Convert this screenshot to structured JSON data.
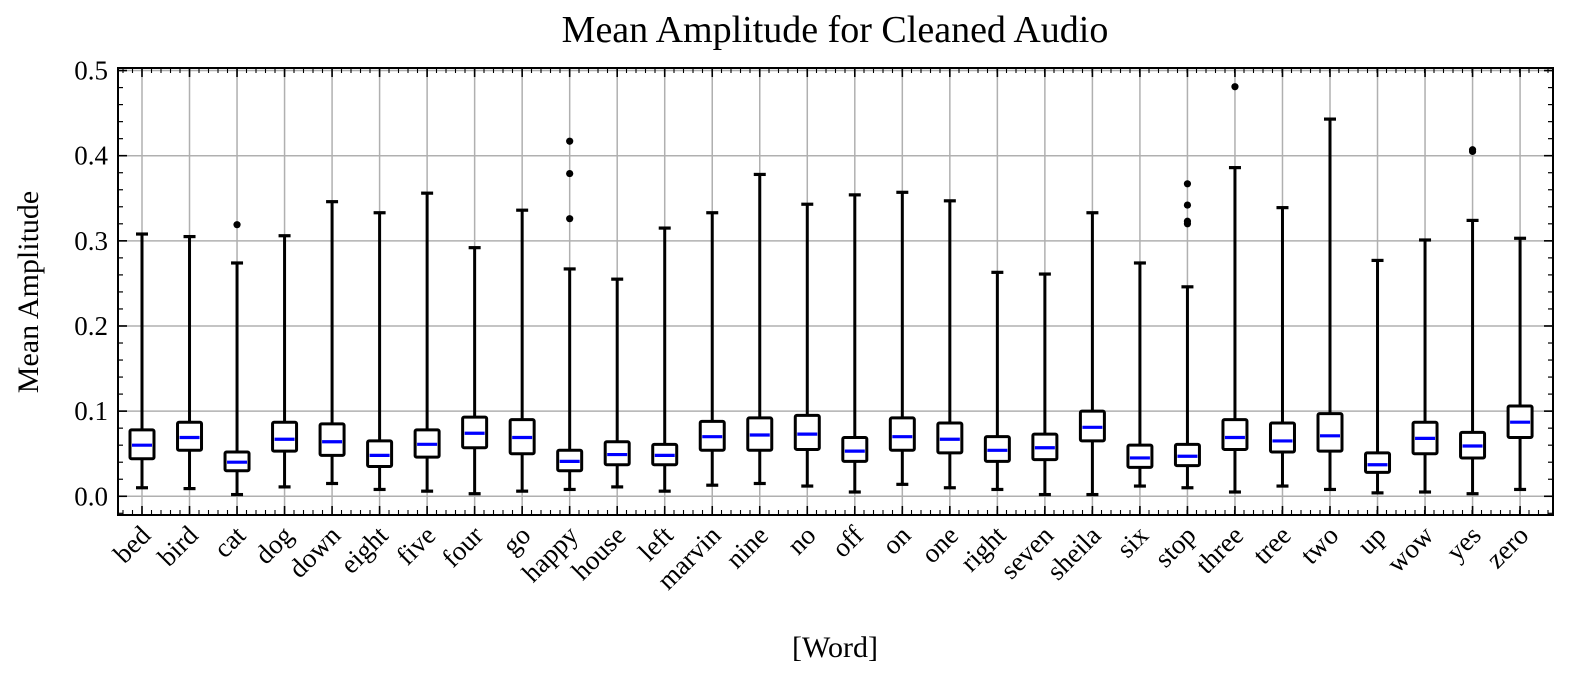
{
  "chart_data": {
    "type": "box",
    "title": "Mean Amplitude for Cleaned Audio",
    "xlabel": "[Word]",
    "ylabel": "Mean Amplitude",
    "ylim": [
      -0.022,
      0.503
    ],
    "yticks": [
      0.0,
      0.1,
      0.2,
      0.3,
      0.4,
      0.5
    ],
    "ytick_labels": [
      "0.0",
      "0.1",
      "0.2",
      "0.3",
      "0.4",
      "0.5"
    ],
    "grid": true,
    "colors": {
      "box": "#000000",
      "median": "#0000ff",
      "grid": "#b0b0b0",
      "outlier": "#000000"
    },
    "categories": [
      "bed",
      "bird",
      "cat",
      "dog",
      "down",
      "eight",
      "five",
      "four",
      "go",
      "happy",
      "house",
      "left",
      "marvin",
      "nine",
      "no",
      "off",
      "on",
      "one",
      "right",
      "seven",
      "sheila",
      "six",
      "stop",
      "three",
      "tree",
      "two",
      "up",
      "wow",
      "yes",
      "zero"
    ],
    "boxes": [
      {
        "whislo": 0.01,
        "q1": 0.044,
        "med": 0.06,
        "q3": 0.078,
        "whishi": 0.308,
        "fliers": []
      },
      {
        "whislo": 0.009,
        "q1": 0.054,
        "med": 0.069,
        "q3": 0.087,
        "whishi": 0.305,
        "fliers": []
      },
      {
        "whislo": 0.002,
        "q1": 0.03,
        "med": 0.04,
        "q3": 0.052,
        "whishi": 0.274,
        "fliers": [
          0.319
        ]
      },
      {
        "whislo": 0.011,
        "q1": 0.053,
        "med": 0.067,
        "q3": 0.087,
        "whishi": 0.306,
        "fliers": []
      },
      {
        "whislo": 0.015,
        "q1": 0.048,
        "med": 0.064,
        "q3": 0.085,
        "whishi": 0.346,
        "fliers": []
      },
      {
        "whislo": 0.008,
        "q1": 0.035,
        "med": 0.048,
        "q3": 0.065,
        "whishi": 0.333,
        "fliers": []
      },
      {
        "whislo": 0.006,
        "q1": 0.046,
        "med": 0.061,
        "q3": 0.078,
        "whishi": 0.356,
        "fliers": []
      },
      {
        "whislo": 0.003,
        "q1": 0.057,
        "med": 0.074,
        "q3": 0.093,
        "whishi": 0.292,
        "fliers": []
      },
      {
        "whislo": 0.006,
        "q1": 0.05,
        "med": 0.069,
        "q3": 0.09,
        "whishi": 0.336,
        "fliers": []
      },
      {
        "whislo": 0.008,
        "q1": 0.03,
        "med": 0.041,
        "q3": 0.054,
        "whishi": 0.267,
        "fliers": [
          0.326,
          0.379,
          0.417
        ]
      },
      {
        "whislo": 0.011,
        "q1": 0.037,
        "med": 0.049,
        "q3": 0.064,
        "whishi": 0.255,
        "fliers": []
      },
      {
        "whislo": 0.006,
        "q1": 0.037,
        "med": 0.048,
        "q3": 0.061,
        "whishi": 0.315,
        "fliers": []
      },
      {
        "whislo": 0.013,
        "q1": 0.054,
        "med": 0.07,
        "q3": 0.088,
        "whishi": 0.333,
        "fliers": []
      },
      {
        "whislo": 0.015,
        "q1": 0.054,
        "med": 0.072,
        "q3": 0.092,
        "whishi": 0.378,
        "fliers": []
      },
      {
        "whislo": 0.012,
        "q1": 0.055,
        "med": 0.073,
        "q3": 0.095,
        "whishi": 0.343,
        "fliers": []
      },
      {
        "whislo": 0.005,
        "q1": 0.041,
        "med": 0.053,
        "q3": 0.069,
        "whishi": 0.354,
        "fliers": []
      },
      {
        "whislo": 0.014,
        "q1": 0.054,
        "med": 0.07,
        "q3": 0.092,
        "whishi": 0.357,
        "fliers": []
      },
      {
        "whislo": 0.01,
        "q1": 0.051,
        "med": 0.067,
        "q3": 0.086,
        "whishi": 0.347,
        "fliers": []
      },
      {
        "whislo": 0.008,
        "q1": 0.041,
        "med": 0.054,
        "q3": 0.07,
        "whishi": 0.263,
        "fliers": []
      },
      {
        "whislo": 0.002,
        "q1": 0.043,
        "med": 0.057,
        "q3": 0.073,
        "whishi": 0.261,
        "fliers": []
      },
      {
        "whislo": 0.002,
        "q1": 0.065,
        "med": 0.081,
        "q3": 0.1,
        "whishi": 0.333,
        "fliers": []
      },
      {
        "whislo": 0.012,
        "q1": 0.034,
        "med": 0.045,
        "q3": 0.06,
        "whishi": 0.274,
        "fliers": []
      },
      {
        "whislo": 0.01,
        "q1": 0.036,
        "med": 0.047,
        "q3": 0.061,
        "whishi": 0.246,
        "fliers": [
          0.32,
          0.323,
          0.342,
          0.367
        ]
      },
      {
        "whislo": 0.005,
        "q1": 0.055,
        "med": 0.069,
        "q3": 0.09,
        "whishi": 0.386,
        "fliers": [
          0.481
        ]
      },
      {
        "whislo": 0.012,
        "q1": 0.052,
        "med": 0.065,
        "q3": 0.086,
        "whishi": 0.339,
        "fliers": []
      },
      {
        "whislo": 0.008,
        "q1": 0.053,
        "med": 0.071,
        "q3": 0.097,
        "whishi": 0.443,
        "fliers": []
      },
      {
        "whislo": 0.004,
        "q1": 0.028,
        "med": 0.037,
        "q3": 0.051,
        "whishi": 0.277,
        "fliers": []
      },
      {
        "whislo": 0.005,
        "q1": 0.05,
        "med": 0.068,
        "q3": 0.087,
        "whishi": 0.301,
        "fliers": []
      },
      {
        "whislo": 0.003,
        "q1": 0.045,
        "med": 0.059,
        "q3": 0.075,
        "whishi": 0.324,
        "fliers": [
          0.405,
          0.407
        ]
      },
      {
        "whislo": 0.008,
        "q1": 0.069,
        "med": 0.087,
        "q3": 0.106,
        "whishi": 0.303,
        "fliers": []
      }
    ]
  }
}
